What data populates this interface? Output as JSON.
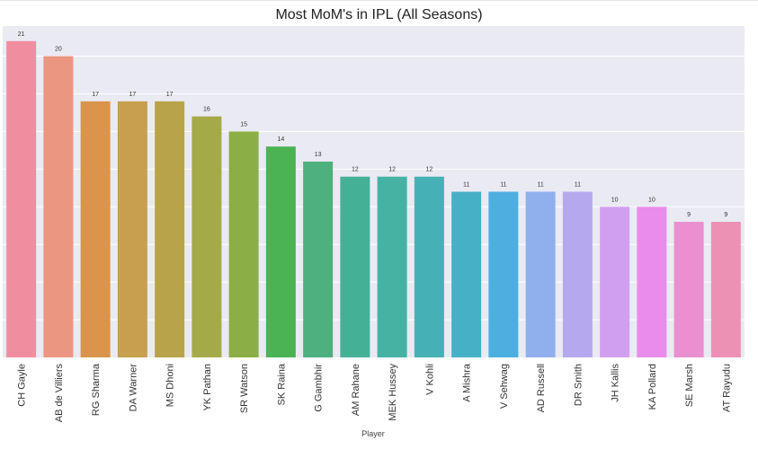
{
  "chart_data": {
    "type": "bar",
    "title": "Most MoM's in IPL (All Seasons)",
    "xlabel": "Player",
    "ylabel": "",
    "ylim": [
      0,
      22
    ],
    "grid": true,
    "categories": [
      "CH Gayle",
      "AB de Villiers",
      "RG Sharma",
      "DA Warner",
      "MS Dhoni",
      "YK Pathan",
      "SR Watson",
      "SK Raina",
      "G Gambhir",
      "AM Rahane",
      "MEK Hussey",
      "V Kohli",
      "A Mishra",
      "V Sehwag",
      "AD Russell",
      "DR Smith",
      "JH Kallis",
      "KA Pollard",
      "SE Marsh",
      "AT Rayudu"
    ],
    "values": [
      21,
      20,
      17,
      17,
      17,
      16,
      15,
      14,
      13,
      12,
      12,
      12,
      11,
      11,
      11,
      11,
      10,
      10,
      9,
      9
    ],
    "colors": [
      "#f08ea0",
      "#ea9680",
      "#d9954c",
      "#c79f4e",
      "#b9a34a",
      "#a4aa48",
      "#8bae46",
      "#4bb354",
      "#4db07e",
      "#45b194",
      "#45b2a4",
      "#45b0b6",
      "#46b1c6",
      "#4eaee0",
      "#8fb0ec",
      "#b6a8ef",
      "#d19ff0",
      "#e98ceb",
      "#ea8fd0",
      "#ec91b4"
    ]
  }
}
